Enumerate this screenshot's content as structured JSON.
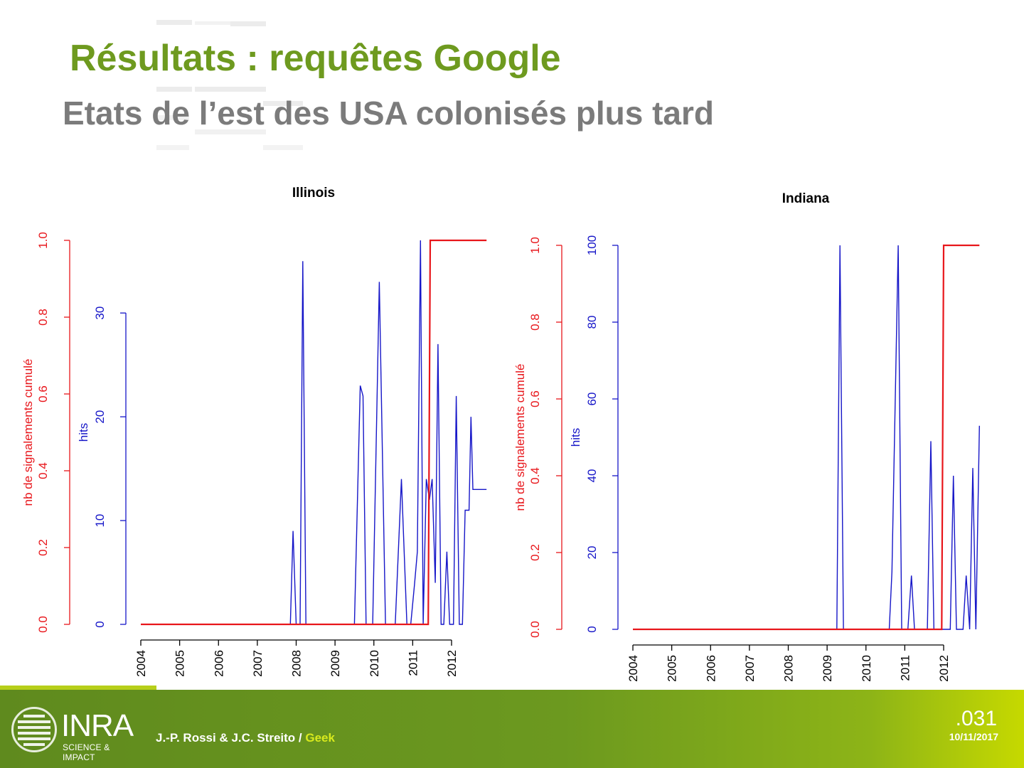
{
  "slide": {
    "title": "Résultats : requêtes Google",
    "subtitle": "Etats de l’est des USA colonisés plus tard"
  },
  "colors": {
    "title_green": "#6e9a1f",
    "subtitle_gray": "#7b7b7b",
    "series_cumulative": "#e8161b",
    "series_hits": "#1616c8"
  },
  "chart_data": [
    {
      "type": "line",
      "title": "Illinois",
      "xlabel": "",
      "x_ticks": [
        "2004",
        "2005",
        "2006",
        "2007",
        "2008",
        "2009",
        "2010",
        "2011",
        "2012"
      ],
      "xlim": [
        2004,
        2013
      ],
      "y_left": {
        "label": "nb de signalements cumulé",
        "ticks": [
          "0.0",
          "0.2",
          "0.4",
          "0.6",
          "0.8",
          "1.0"
        ],
        "ylim": [
          0,
          1
        ]
      },
      "y_right": {
        "label": "hits",
        "ticks": [
          "0",
          "10",
          "20",
          "30"
        ],
        "ylim": [
          0,
          37
        ]
      },
      "series": [
        {
          "axis": "hits",
          "x": [
            2004.0,
            2007.85,
            2007.92,
            2008.0,
            2008.1,
            2008.17,
            2008.25,
            2009.5,
            2009.65,
            2009.72,
            2009.8,
            2009.97,
            2010.14,
            2010.3,
            2010.55,
            2010.71,
            2010.85,
            2010.95,
            2011.05,
            2011.12,
            2011.2,
            2011.27,
            2011.35,
            2011.43,
            2011.5,
            2011.58,
            2011.65,
            2011.73,
            2011.8,
            2011.88,
            2011.95,
            2012.05,
            2012.12,
            2012.2,
            2012.28,
            2012.35,
            2012.45,
            2012.5,
            2012.55,
            2012.65,
            2012.72,
            2012.78,
            2012.85,
            2012.9
          ],
          "y": [
            0,
            0,
            9,
            0,
            0,
            35,
            0,
            0,
            23,
            22,
            0,
            0,
            33,
            0,
            0,
            14,
            0,
            0,
            4,
            7,
            37,
            0,
            14,
            12,
            14,
            4,
            27,
            0,
            0,
            7,
            0,
            0,
            22,
            0,
            0,
            11,
            11,
            20,
            13,
            13,
            13,
            13,
            13,
            13
          ]
        },
        {
          "axis": "cumulative",
          "x": [
            2004.0,
            2011.4,
            2011.45,
            2012.9
          ],
          "y": [
            0,
            0,
            1,
            1
          ]
        }
      ]
    },
    {
      "type": "line",
      "title": "Indiana",
      "xlabel": "",
      "x_ticks": [
        "2004",
        "2005",
        "2006",
        "2007",
        "2008",
        "2009",
        "2010",
        "2011",
        "2012"
      ],
      "xlim": [
        2004,
        2013
      ],
      "y_left": {
        "label": "nb de signalements cumulé",
        "ticks": [
          "0.0",
          "0.2",
          "0.4",
          "0.6",
          "0.8",
          "1.0"
        ],
        "ylim": [
          0,
          1
        ]
      },
      "y_right": {
        "label": "hits",
        "ticks": [
          "0",
          "20",
          "40",
          "60",
          "80",
          "100"
        ],
        "ylim": [
          0,
          100
        ]
      },
      "series": [
        {
          "axis": "hits",
          "x": [
            2004.0,
            2009.25,
            2009.33,
            2009.42,
            2010.6,
            2010.67,
            2010.83,
            2010.92,
            2011.08,
            2011.17,
            2011.25,
            2011.58,
            2011.67,
            2011.75,
            2012.0,
            2012.17,
            2012.25,
            2012.33,
            2012.5,
            2012.58,
            2012.67,
            2012.75,
            2012.83,
            2012.92
          ],
          "y": [
            0,
            0,
            100,
            0,
            0,
            15,
            100,
            0,
            0,
            14,
            0,
            0,
            49,
            0,
            0,
            0,
            40,
            0,
            0,
            14,
            0,
            42,
            0,
            53
          ]
        },
        {
          "axis": "cumulative",
          "x": [
            2004.0,
            2011.95,
            2012.0,
            2012.92
          ],
          "y": [
            0,
            0,
            1,
            1
          ]
        }
      ]
    }
  ],
  "footer": {
    "brand": "INRA",
    "tagline": "SCIENCE & IMPACT",
    "authors": "J.-P. Rossi & J.C. Streito /",
    "project": "Geek",
    "slide_number": ".031",
    "date": "10/11/2017"
  }
}
